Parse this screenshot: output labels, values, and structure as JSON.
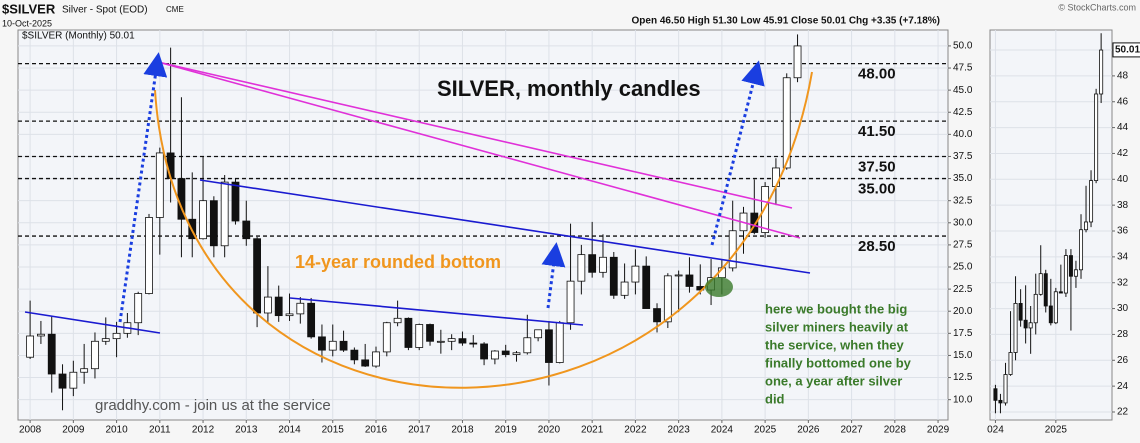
{
  "header": {
    "symbol": "$SILVER",
    "description": "Silver - Spot (EOD)",
    "exchange": "CME",
    "date": "10-Oct-2025",
    "quote": "Open 46.50  High 51.30  Low 45.91  Close 50.01  Chg +3.35 (+7.18%)",
    "credit": "© StockCharts.com"
  },
  "chart_data": [
    {
      "type": "candlestick",
      "legend": "$SILVER (Monthly) 50.01",
      "up_color": "#ffffff",
      "down_color": "#111111",
      "grid": true,
      "x": [
        2008,
        2008.25,
        2008.5,
        2008.75,
        2009,
        2009.25,
        2009.5,
        2009.75,
        2010,
        2010.25,
        2010.5,
        2010.75,
        2011,
        2011.25,
        2011.5,
        2011.75,
        2012,
        2012.25,
        2012.5,
        2012.75,
        2013,
        2013.25,
        2013.5,
        2013.75,
        2014,
        2014.25,
        2014.5,
        2014.75,
        2015,
        2015.25,
        2015.5,
        2015.75,
        2016,
        2016.25,
        2016.5,
        2016.75,
        2017,
        2017.25,
        2017.5,
        2017.75,
        2018,
        2018.25,
        2018.5,
        2018.75,
        2019,
        2019.25,
        2019.5,
        2019.75,
        2020,
        2020.25,
        2020.5,
        2020.75,
        2021,
        2021.25,
        2021.5,
        2021.75,
        2022,
        2022.25,
        2022.5,
        2022.75,
        2023,
        2023.25,
        2023.5,
        2023.75,
        2024,
        2024.25,
        2024.5,
        2024.75,
        2025,
        2025.25,
        2025.5,
        2025.75
      ],
      "open": [
        14.8,
        17.2,
        17.4,
        12.9,
        11.3,
        13.1,
        13.5,
        16.6,
        16.9,
        17.5,
        18.7,
        22,
        30.6,
        37.9,
        35,
        30.4,
        28.2,
        32.5,
        27.4,
        34.6,
        30.2,
        28.2,
        19.8,
        21.6,
        19.5,
        19.7,
        20.9,
        17.1,
        15.6,
        16.6,
        15.6,
        14.5,
        13.8,
        15.4,
        18.7,
        19.2,
        15.9,
        18.5,
        16.6,
        16.6,
        16.9,
        16.4,
        16.3,
        14.6,
        15.5,
        15.1,
        15.3,
        17,
        17.9,
        14.2,
        18.7,
        23.4,
        26.4,
        24.4,
        26.1,
        21.8,
        23.3,
        25.1,
        20.3,
        18.8,
        24,
        24.1,
        22.8,
        22.4,
        23.8,
        24.9,
        29.1,
        31.1,
        28.9,
        34.1,
        36.2,
        46.4
      ],
      "high": [
        21.2,
        18.9,
        19.5,
        14,
        14.4,
        16.3,
        17.6,
        19.3,
        18.8,
        19.8,
        22.2,
        31,
        38.5,
        49.8,
        44.2,
        35.7,
        37.5,
        33,
        35.4,
        35,
        32.5,
        28.4,
        25.1,
        22.9,
        22,
        21.6,
        21.5,
        18.5,
        18.5,
        17.8,
        15.9,
        16.3,
        16,
        18.8,
        21.2,
        19.3,
        18.6,
        18.6,
        17.9,
        17.4,
        17.7,
        17.3,
        16.5,
        15.6,
        16.2,
        15.5,
        19.6,
        17.9,
        18.9,
        18.9,
        29.9,
        27.5,
        30.1,
        28.7,
        26.7,
        25.4,
        27,
        26.2,
        20.9,
        24.3,
        24.6,
        26.1,
        25.3,
        25.9,
        25.8,
        32.5,
        31.8,
        34.9,
        34.6,
        37.3,
        46.9,
        51.3
      ],
      "low": [
        14.6,
        16.3,
        10.8,
        8.8,
        10.4,
        11.8,
        12.4,
        16.2,
        14.8,
        17,
        17.3,
        21.9,
        26.4,
        32.3,
        26.1,
        26.1,
        28.1,
        26.1,
        26.1,
        29.8,
        27.4,
        18.2,
        18.8,
        18.8,
        18.9,
        18.6,
        16.9,
        14.2,
        14.9,
        15.4,
        14,
        13.7,
        13.6,
        14.9,
        18.3,
        15.6,
        15.6,
        16.1,
        15.2,
        15.6,
        16.1,
        15.9,
        13.9,
        14,
        14.8,
        14.3,
        15.1,
        16.6,
        11.6,
        14.1,
        17.9,
        21.9,
        23.8,
        23.8,
        21.4,
        21.4,
        21.9,
        20.5,
        17.6,
        18.1,
        19.9,
        22.1,
        21.9,
        20.7,
        21.9,
        24.5,
        26.5,
        28.7,
        28.3,
        32,
        36,
        45.9
      ],
      "close": [
        17.2,
        17.4,
        12.9,
        11.3,
        13.1,
        13.5,
        16.6,
        16.9,
        17.5,
        18.7,
        22,
        30.6,
        37.9,
        35,
        30.4,
        28.2,
        32.5,
        27.4,
        34.6,
        30.2,
        28.2,
        19.8,
        21.6,
        19.5,
        19.7,
        20.9,
        17.1,
        15.6,
        16.6,
        15.6,
        14.5,
        13.8,
        15.4,
        18.7,
        19.2,
        15.9,
        18.5,
        16.6,
        16.6,
        16.9,
        16.4,
        16.3,
        14.6,
        15.5,
        15.1,
        15.3,
        17,
        17.9,
        14.2,
        18.7,
        23.4,
        26.4,
        24.4,
        26.1,
        21.8,
        23.3,
        25.1,
        20.3,
        18.8,
        24,
        24.1,
        22.8,
        22.4,
        23.8,
        24.9,
        29.1,
        31.1,
        28.9,
        34.1,
        36.2,
        46.4,
        50
      ],
      "xlim": [
        2007.72,
        2029.23
      ],
      "xticks": [
        2008,
        2009,
        2010,
        2011,
        2012,
        2013,
        2014,
        2015,
        2016,
        2017,
        2018,
        2019,
        2020,
        2021,
        2022,
        2023,
        2024,
        2025,
        2026,
        2027,
        2028,
        2029
      ],
      "ylim": [
        7.7,
        51.8
      ],
      "yticks": [
        {
          "value": 10,
          "label": "10.0"
        },
        12.5,
        {
          "value": 15,
          "label": "15.0"
        },
        17.5,
        {
          "value": 20,
          "label": "20.0"
        },
        22.5,
        {
          "value": 25,
          "label": "25.0"
        },
        27.5,
        {
          "value": 30,
          "label": "30.0"
        },
        32.5,
        {
          "value": 35,
          "label": "35.0"
        },
        37.5,
        {
          "value": 40,
          "label": "40.0"
        },
        42.5,
        {
          "value": 45,
          "label": "45.0"
        },
        47.5,
        {
          "value": 50,
          "label": "50.0"
        }
      ],
      "levels": [
        {
          "value": 48,
          "label": "48.00"
        },
        {
          "value": 41.5,
          "label": "41.50"
        },
        {
          "value": 37.5,
          "label": "37.50"
        },
        {
          "value": 35,
          "label": "35.00"
        },
        {
          "value": 28.5,
          "label": "28.50"
        }
      ],
      "annotations": {
        "title": "SILVER, monthly candles",
        "bottom": "14-year rounded bottom",
        "site": "graddhy.com - join us at the service",
        "note": [
          "here we bought the big",
          "silver miners heavily at",
          "the service, when they",
          "finally bottomed one by",
          "one, a year after silver",
          "did"
        ]
      }
    },
    {
      "type": "candlestick",
      "up_color": "#ffffff",
      "down_color": "#111111",
      "grid": true,
      "last": 50.01,
      "x": [
        2024,
        2024.083,
        2024.167,
        2024.25,
        2024.333,
        2024.417,
        2024.5,
        2024.583,
        2024.667,
        2024.75,
        2024.833,
        2024.917,
        2025,
        2025.083,
        2025.167,
        2025.25,
        2025.333,
        2025.417,
        2025.5,
        2025.583,
        2025.667,
        2025.75
      ],
      "open": [
        23.8,
        22.9,
        22.7,
        24.9,
        26.6,
        30.4,
        29.1,
        28.5,
        28.9,
        31.1,
        32.7,
        30.2,
        28.9,
        31.3,
        31.2,
        34.1,
        32.5,
        33,
        36.1,
        36.7,
        39.9,
        46.6
      ],
      "high": [
        24.1,
        23.4,
        25.8,
        29.8,
        32.5,
        31.5,
        31.8,
        30.2,
        32.7,
        34.9,
        33,
        32.3,
        31.6,
        33.4,
        34.6,
        34.6,
        33.7,
        37.3,
        39.5,
        40.7,
        47,
        51.3
      ],
      "low": [
        21.9,
        21.9,
        22.5,
        24.8,
        26,
        28.6,
        27.3,
        26.5,
        28,
        31,
        29.7,
        28.7,
        28.8,
        31.3,
        30.9,
        28.3,
        31.6,
        32.3,
        35.9,
        36.3,
        39.7,
        45.9
      ],
      "close": [
        22.9,
        22.7,
        24.9,
        26.6,
        30.4,
        29.1,
        28.5,
        28.9,
        31.1,
        32.7,
        30.2,
        28.9,
        31.3,
        31.2,
        34.1,
        32.5,
        33,
        36.1,
        36.7,
        39.9,
        46.6,
        50
      ],
      "xlim": [
        2023.91,
        2025.93
      ],
      "xticks": [
        {
          "value": 2024,
          "label": "024"
        },
        2025
      ],
      "ylim": [
        21.38,
        51.55
      ],
      "yticks": [
        22,
        24,
        26,
        28,
        30,
        32,
        34,
        36,
        38,
        40,
        42,
        44,
        46,
        48,
        50
      ]
    }
  ]
}
